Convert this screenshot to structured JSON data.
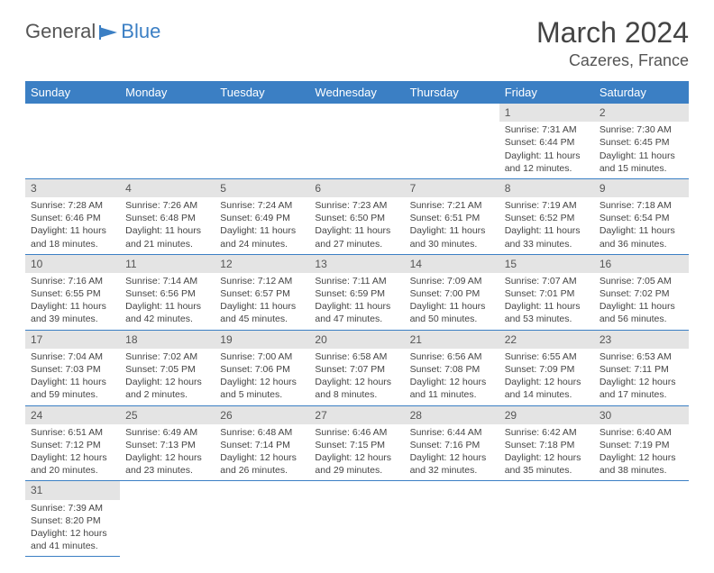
{
  "logo": {
    "text1": "General",
    "text2": "Blue"
  },
  "title": "March 2024",
  "location": "Cazeres, France",
  "colors": {
    "header_bg": "#3b7fc4",
    "daynum_bg": "#e4e4e4",
    "rule": "#3b7fc4"
  },
  "day_headers": [
    "Sunday",
    "Monday",
    "Tuesday",
    "Wednesday",
    "Thursday",
    "Friday",
    "Saturday"
  ],
  "weeks": [
    {
      "nums": [
        "",
        "",
        "",
        "",
        "",
        "1",
        "2"
      ],
      "cells": [
        null,
        null,
        null,
        null,
        null,
        {
          "sr": "Sunrise: 7:31 AM",
          "ss": "Sunset: 6:44 PM",
          "dl": "Daylight: 11 hours and 12 minutes."
        },
        {
          "sr": "Sunrise: 7:30 AM",
          "ss": "Sunset: 6:45 PM",
          "dl": "Daylight: 11 hours and 15 minutes."
        }
      ]
    },
    {
      "nums": [
        "3",
        "4",
        "5",
        "6",
        "7",
        "8",
        "9"
      ],
      "cells": [
        {
          "sr": "Sunrise: 7:28 AM",
          "ss": "Sunset: 6:46 PM",
          "dl": "Daylight: 11 hours and 18 minutes."
        },
        {
          "sr": "Sunrise: 7:26 AM",
          "ss": "Sunset: 6:48 PM",
          "dl": "Daylight: 11 hours and 21 minutes."
        },
        {
          "sr": "Sunrise: 7:24 AM",
          "ss": "Sunset: 6:49 PM",
          "dl": "Daylight: 11 hours and 24 minutes."
        },
        {
          "sr": "Sunrise: 7:23 AM",
          "ss": "Sunset: 6:50 PM",
          "dl": "Daylight: 11 hours and 27 minutes."
        },
        {
          "sr": "Sunrise: 7:21 AM",
          "ss": "Sunset: 6:51 PM",
          "dl": "Daylight: 11 hours and 30 minutes."
        },
        {
          "sr": "Sunrise: 7:19 AM",
          "ss": "Sunset: 6:52 PM",
          "dl": "Daylight: 11 hours and 33 minutes."
        },
        {
          "sr": "Sunrise: 7:18 AM",
          "ss": "Sunset: 6:54 PM",
          "dl": "Daylight: 11 hours and 36 minutes."
        }
      ]
    },
    {
      "nums": [
        "10",
        "11",
        "12",
        "13",
        "14",
        "15",
        "16"
      ],
      "cells": [
        {
          "sr": "Sunrise: 7:16 AM",
          "ss": "Sunset: 6:55 PM",
          "dl": "Daylight: 11 hours and 39 minutes."
        },
        {
          "sr": "Sunrise: 7:14 AM",
          "ss": "Sunset: 6:56 PM",
          "dl": "Daylight: 11 hours and 42 minutes."
        },
        {
          "sr": "Sunrise: 7:12 AM",
          "ss": "Sunset: 6:57 PM",
          "dl": "Daylight: 11 hours and 45 minutes."
        },
        {
          "sr": "Sunrise: 7:11 AM",
          "ss": "Sunset: 6:59 PM",
          "dl": "Daylight: 11 hours and 47 minutes."
        },
        {
          "sr": "Sunrise: 7:09 AM",
          "ss": "Sunset: 7:00 PM",
          "dl": "Daylight: 11 hours and 50 minutes."
        },
        {
          "sr": "Sunrise: 7:07 AM",
          "ss": "Sunset: 7:01 PM",
          "dl": "Daylight: 11 hours and 53 minutes."
        },
        {
          "sr": "Sunrise: 7:05 AM",
          "ss": "Sunset: 7:02 PM",
          "dl": "Daylight: 11 hours and 56 minutes."
        }
      ]
    },
    {
      "nums": [
        "17",
        "18",
        "19",
        "20",
        "21",
        "22",
        "23"
      ],
      "cells": [
        {
          "sr": "Sunrise: 7:04 AM",
          "ss": "Sunset: 7:03 PM",
          "dl": "Daylight: 11 hours and 59 minutes."
        },
        {
          "sr": "Sunrise: 7:02 AM",
          "ss": "Sunset: 7:05 PM",
          "dl": "Daylight: 12 hours and 2 minutes."
        },
        {
          "sr": "Sunrise: 7:00 AM",
          "ss": "Sunset: 7:06 PM",
          "dl": "Daylight: 12 hours and 5 minutes."
        },
        {
          "sr": "Sunrise: 6:58 AM",
          "ss": "Sunset: 7:07 PM",
          "dl": "Daylight: 12 hours and 8 minutes."
        },
        {
          "sr": "Sunrise: 6:56 AM",
          "ss": "Sunset: 7:08 PM",
          "dl": "Daylight: 12 hours and 11 minutes."
        },
        {
          "sr": "Sunrise: 6:55 AM",
          "ss": "Sunset: 7:09 PM",
          "dl": "Daylight: 12 hours and 14 minutes."
        },
        {
          "sr": "Sunrise: 6:53 AM",
          "ss": "Sunset: 7:11 PM",
          "dl": "Daylight: 12 hours and 17 minutes."
        }
      ]
    },
    {
      "nums": [
        "24",
        "25",
        "26",
        "27",
        "28",
        "29",
        "30"
      ],
      "cells": [
        {
          "sr": "Sunrise: 6:51 AM",
          "ss": "Sunset: 7:12 PM",
          "dl": "Daylight: 12 hours and 20 minutes."
        },
        {
          "sr": "Sunrise: 6:49 AM",
          "ss": "Sunset: 7:13 PM",
          "dl": "Daylight: 12 hours and 23 minutes."
        },
        {
          "sr": "Sunrise: 6:48 AM",
          "ss": "Sunset: 7:14 PM",
          "dl": "Daylight: 12 hours and 26 minutes."
        },
        {
          "sr": "Sunrise: 6:46 AM",
          "ss": "Sunset: 7:15 PM",
          "dl": "Daylight: 12 hours and 29 minutes."
        },
        {
          "sr": "Sunrise: 6:44 AM",
          "ss": "Sunset: 7:16 PM",
          "dl": "Daylight: 12 hours and 32 minutes."
        },
        {
          "sr": "Sunrise: 6:42 AM",
          "ss": "Sunset: 7:18 PM",
          "dl": "Daylight: 12 hours and 35 minutes."
        },
        {
          "sr": "Sunrise: 6:40 AM",
          "ss": "Sunset: 7:19 PM",
          "dl": "Daylight: 12 hours and 38 minutes."
        }
      ]
    },
    {
      "nums": [
        "31",
        "",
        "",
        "",
        "",
        "",
        ""
      ],
      "cells": [
        {
          "sr": "Sunrise: 7:39 AM",
          "ss": "Sunset: 8:20 PM",
          "dl": "Daylight: 12 hours and 41 minutes."
        },
        null,
        null,
        null,
        null,
        null,
        null
      ]
    }
  ]
}
